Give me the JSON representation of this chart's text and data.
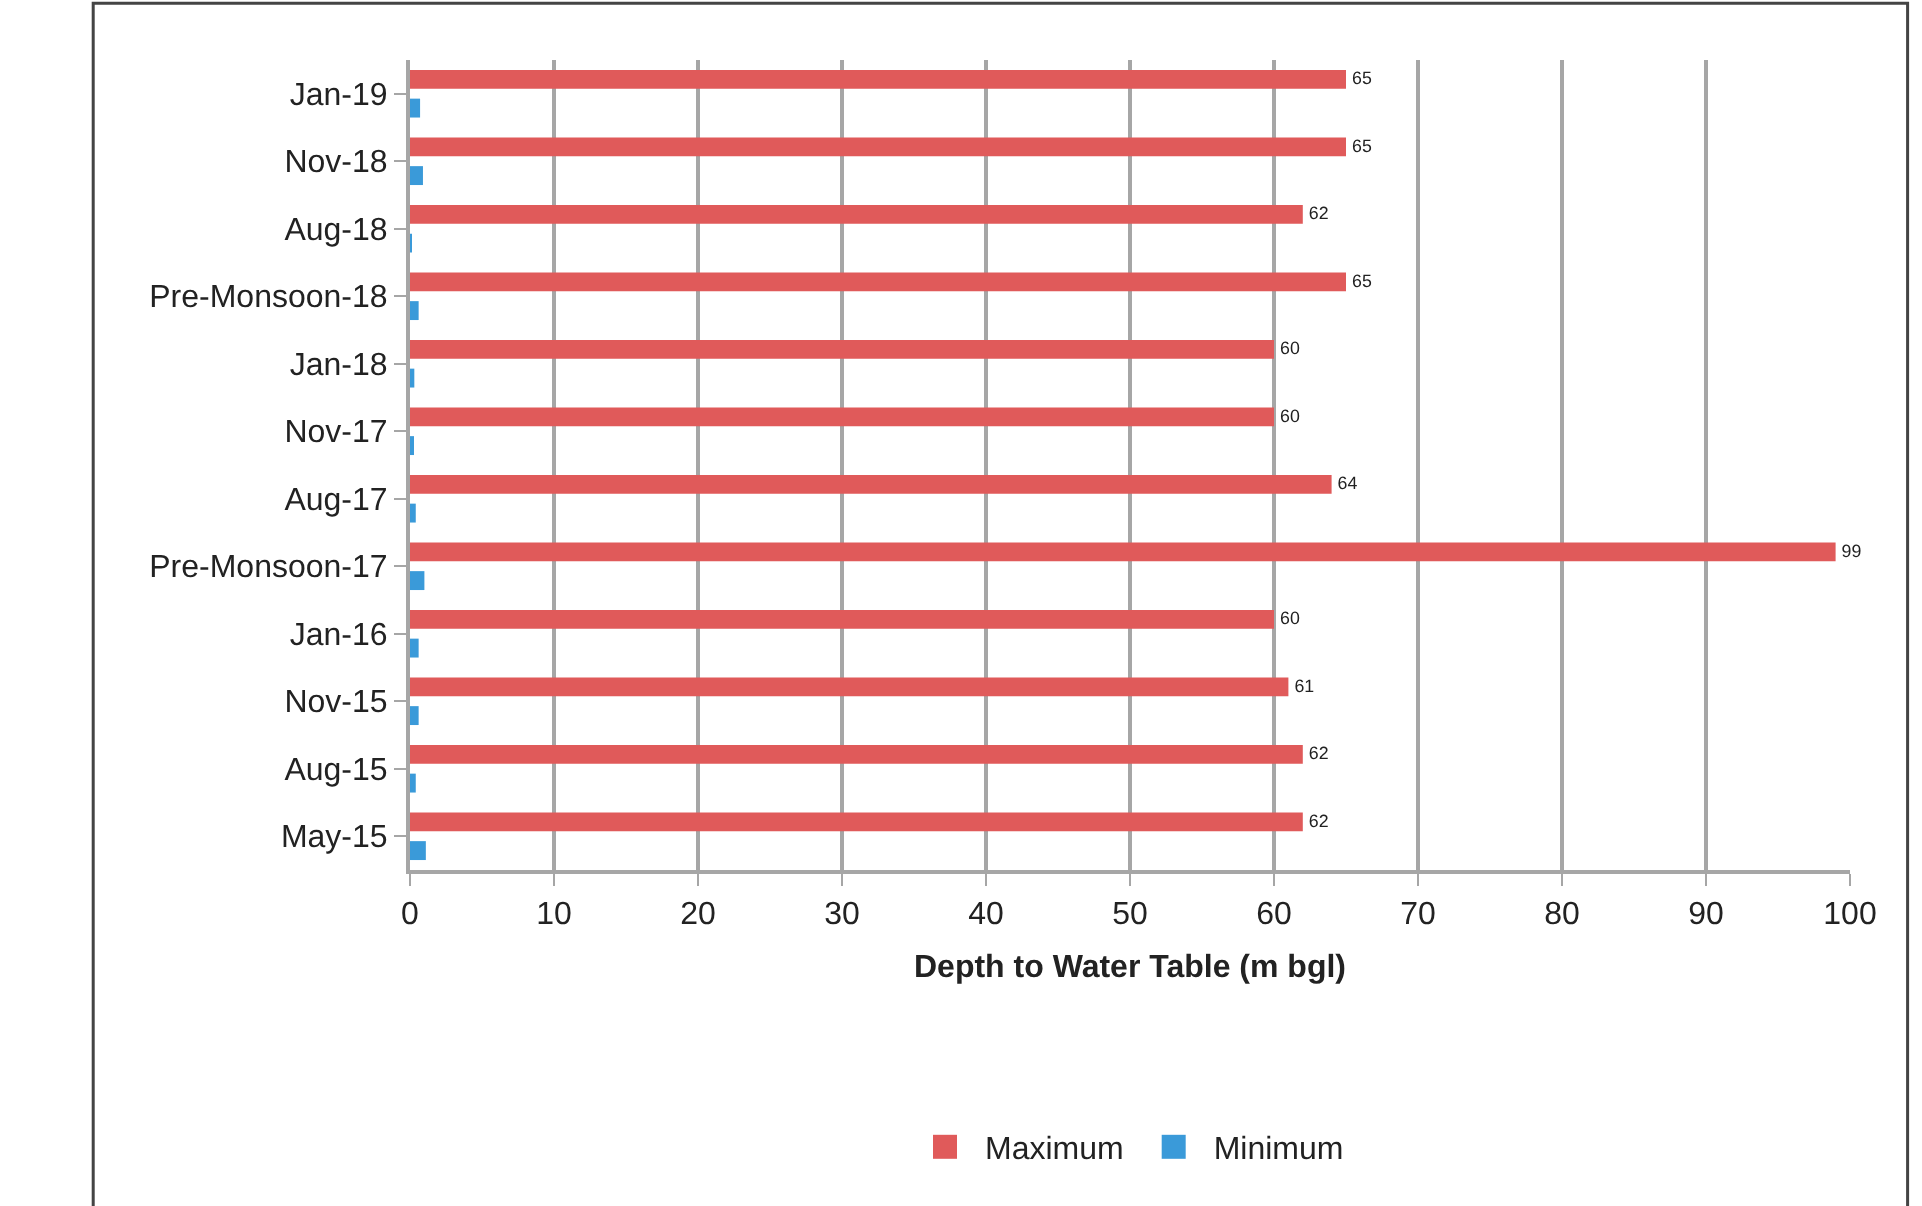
{
  "chart_data": {
    "type": "bar",
    "orientation": "horizontal",
    "xlabel": "Depth to Water Table (m bgl)",
    "categories": [
      "Jan-19",
      "Nov-18",
      "Aug-18",
      "Pre-Monsoon-18",
      "Jan-18",
      "Nov-17",
      "Aug-17",
      "Pre-Monsoon-17",
      "Jan-16",
      "Nov-15",
      "Aug-15",
      "May-15"
    ],
    "series": [
      {
        "name": "Maximum",
        "color": "#e05a5a",
        "values": [
          65,
          65,
          62,
          65,
          60,
          60,
          64,
          99,
          60,
          61,
          62,
          62
        ],
        "value_labels": [
          "65",
          "65",
          "62",
          "65",
          "60",
          "60",
          "64",
          "99",
          "60",
          "61",
          "62",
          "62"
        ]
      },
      {
        "name": "Minimum",
        "color": "#3a9ad9",
        "values": [
          0.7,
          0.9,
          0.1,
          0.6,
          0.3,
          0.2,
          0.4,
          1.0,
          0.6,
          0.6,
          0.4,
          1.1
        ]
      }
    ],
    "xlim": [
      0,
      100
    ],
    "xticks": [
      0,
      10,
      20,
      30,
      40,
      50,
      60,
      70,
      80,
      90,
      100
    ],
    "grid": "x",
    "legend": "bottom"
  }
}
